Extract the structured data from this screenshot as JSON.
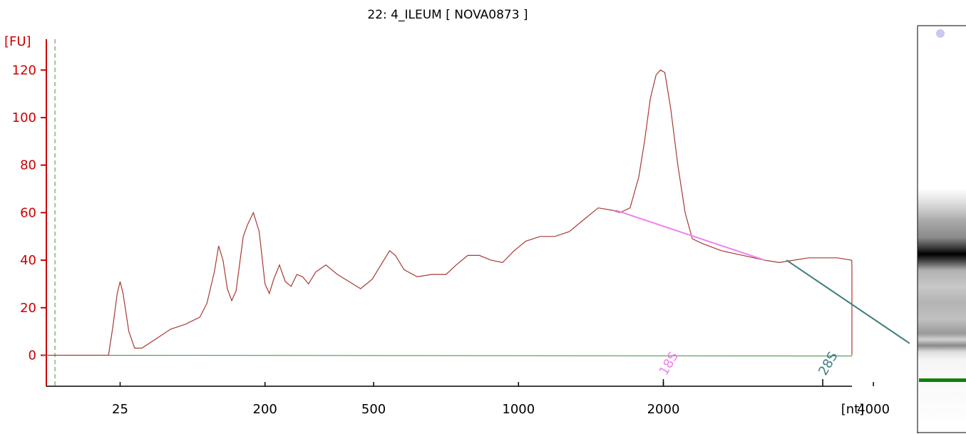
{
  "chart_data": {
    "type": "line",
    "title": "22: 4_ILEUM  [ NOVA0873 ]",
    "ylabel": "[FU]",
    "xlabel": "[nt]",
    "ylim": [
      -12,
      130
    ],
    "y_ticks": [
      0,
      20,
      40,
      60,
      80,
      100,
      120
    ],
    "x_ticks": [
      {
        "label": "25",
        "t": 0.0
      },
      {
        "label": "200",
        "t": 1.0
      },
      {
        "label": "500",
        "t": 1.75
      },
      {
        "label": "1000",
        "t": 2.75
      },
      {
        "label": "2000",
        "t": 3.75
      },
      {
        "label": "4000",
        "t": 5.2
      }
    ],
    "xlim_t": [
      -0.45,
      8.5
    ],
    "lower_marker_t": -0.45,
    "upper_marker_t": 8.5,
    "series": [
      {
        "color": "#a83a32",
        "points": [
          [
            -0.5,
            0
          ],
          [
            -0.08,
            0
          ],
          [
            -0.05,
            12
          ],
          [
            -0.02,
            26
          ],
          [
            0.0,
            31
          ],
          [
            0.02,
            26
          ],
          [
            0.06,
            10
          ],
          [
            0.1,
            3
          ],
          [
            0.15,
            3
          ],
          [
            0.25,
            7
          ],
          [
            0.35,
            11
          ],
          [
            0.45,
            13
          ],
          [
            0.55,
            16
          ],
          [
            0.6,
            22
          ],
          [
            0.65,
            35
          ],
          [
            0.68,
            46
          ],
          [
            0.71,
            40
          ],
          [
            0.74,
            28
          ],
          [
            0.77,
            23
          ],
          [
            0.8,
            27
          ],
          [
            0.85,
            50
          ],
          [
            0.88,
            55
          ],
          [
            0.92,
            60
          ],
          [
            0.96,
            52
          ],
          [
            1.0,
            30
          ],
          [
            1.03,
            26
          ],
          [
            1.06,
            32
          ],
          [
            1.1,
            38
          ],
          [
            1.14,
            31
          ],
          [
            1.18,
            29
          ],
          [
            1.22,
            34
          ],
          [
            1.26,
            33
          ],
          [
            1.3,
            30
          ],
          [
            1.35,
            35
          ],
          [
            1.42,
            38
          ],
          [
            1.5,
            34
          ],
          [
            1.58,
            31
          ],
          [
            1.66,
            28
          ],
          [
            1.74,
            32
          ],
          [
            1.8,
            38
          ],
          [
            1.86,
            44
          ],
          [
            1.9,
            42
          ],
          [
            1.96,
            36
          ],
          [
            2.05,
            33
          ],
          [
            2.15,
            34
          ],
          [
            2.25,
            34
          ],
          [
            2.32,
            38
          ],
          [
            2.4,
            42
          ],
          [
            2.48,
            42
          ],
          [
            2.56,
            40
          ],
          [
            2.64,
            39
          ],
          [
            2.72,
            44
          ],
          [
            2.8,
            48
          ],
          [
            2.9,
            50
          ],
          [
            3.0,
            50
          ],
          [
            3.1,
            52
          ],
          [
            3.2,
            57
          ],
          [
            3.3,
            62
          ],
          [
            3.4,
            61
          ],
          [
            3.45,
            60
          ],
          [
            3.52,
            62
          ],
          [
            3.58,
            75
          ],
          [
            3.62,
            90
          ],
          [
            3.66,
            108
          ],
          [
            3.7,
            118
          ],
          [
            3.73,
            120
          ],
          [
            3.76,
            119
          ],
          [
            3.8,
            104
          ],
          [
            3.85,
            80
          ],
          [
            3.9,
            60
          ],
          [
            3.95,
            49
          ],
          [
            4.02,
            47
          ],
          [
            4.15,
            44
          ],
          [
            4.3,
            42
          ],
          [
            4.45,
            40
          ],
          [
            4.55,
            39
          ],
          [
            4.65,
            40
          ],
          [
            4.75,
            41
          ],
          [
            4.85,
            41
          ],
          [
            4.95,
            41
          ],
          [
            5.05,
            40
          ],
          [
            5.12,
            37
          ],
          [
            5.2,
            30
          ],
          [
            5.28,
            22
          ],
          [
            5.36,
            12
          ],
          [
            5.44,
            5
          ],
          [
            5.52,
            2
          ],
          [
            5.62,
            1
          ],
          [
            5.8,
            0.5
          ],
          [
            6.0,
            0.3
          ],
          [
            6.5,
            0
          ],
          [
            8.7,
            0
          ]
        ]
      }
    ],
    "baseline": {
      "color": "#3a8a3a",
      "y": 0
    },
    "peaks": [
      {
        "label": "18S",
        "color": "#ee82ee",
        "t_start": 3.42,
        "y_start": 61,
        "t_end": 4.45,
        "y_end": 40,
        "label_t": 3.75
      },
      {
        "label": "28S",
        "color": "#3f7f7f",
        "t_start": 4.6,
        "y_start": 40,
        "t_end": 5.45,
        "y_end": 5,
        "label_t": 4.85
      }
    ]
  }
}
